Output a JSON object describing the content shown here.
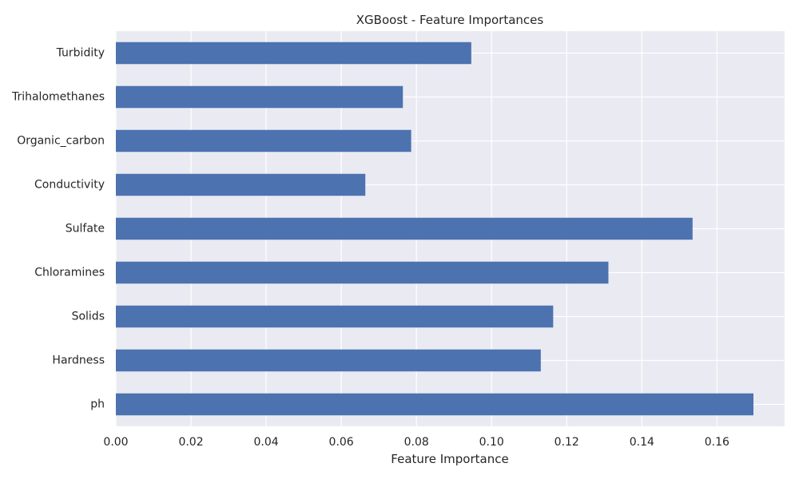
{
  "chart_data": {
    "type": "bar",
    "orientation": "horizontal",
    "title": "XGBoost - Feature Importances",
    "xlabel": "Feature Importance",
    "ylabel": "",
    "xlim": [
      0,
      0.178
    ],
    "xticks": [
      "0.00",
      "0.02",
      "0.04",
      "0.06",
      "0.08",
      "0.10",
      "0.12",
      "0.14",
      "0.16"
    ],
    "categories": [
      "ph",
      "Hardness",
      "Solids",
      "Chloramines",
      "Sulfate",
      "Conductivity",
      "Organic_carbon",
      "Trihalomethanes",
      "Turbidity"
    ],
    "values": [
      0.1697,
      0.1131,
      0.1164,
      0.1311,
      0.1535,
      0.0664,
      0.0786,
      0.0764,
      0.0946
    ],
    "grid": true,
    "colors": {
      "bar": "#4c72b0",
      "background": "#eaeaf2",
      "grid": "#ffffff",
      "text": "#262626"
    }
  }
}
